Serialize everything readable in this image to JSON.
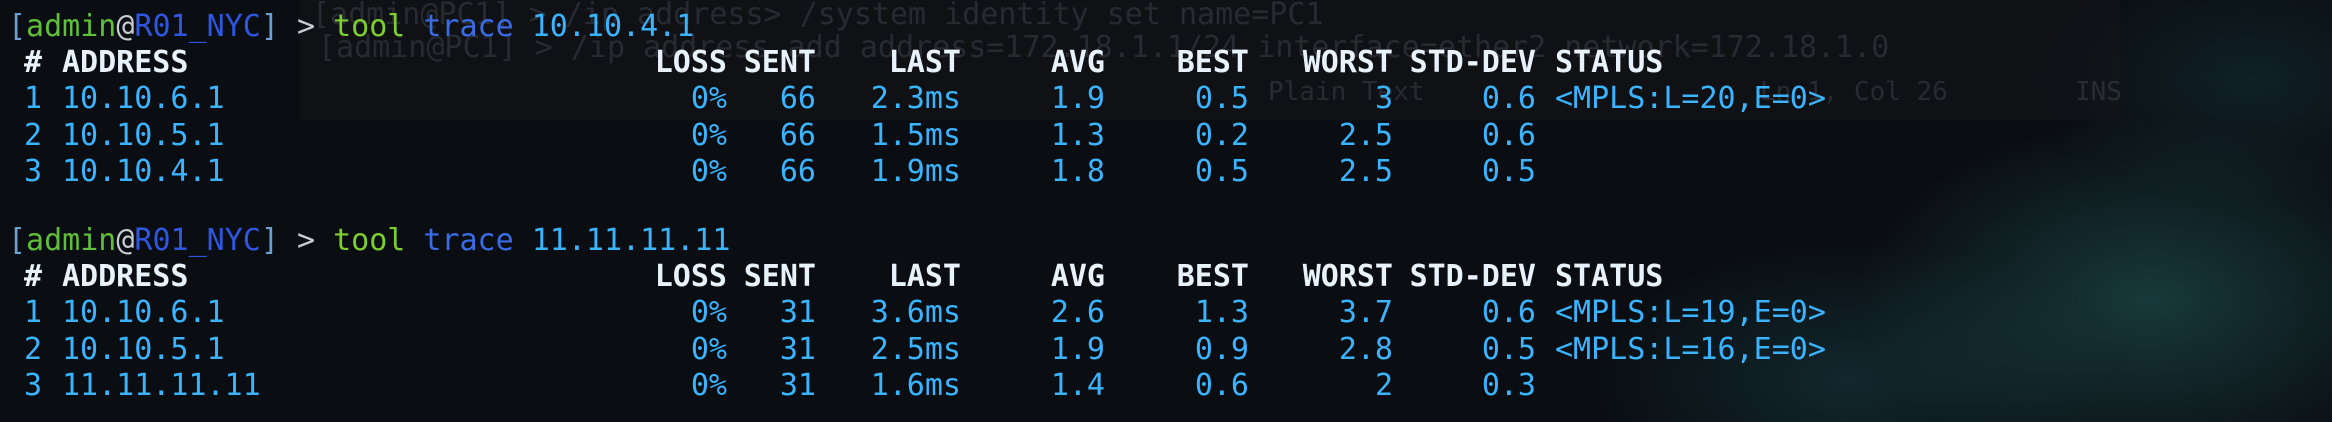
{
  "background_window": {
    "lines": [
      "[admin@PC1] > /ip address> /system identity set name=PC1",
      "[admin@PC1] > /ip address add address=172.18.1.1/24 interface=ether2 network=172.18.1.0"
    ],
    "status_bar": {
      "language": "Plain Text",
      "position": "Ln 1, Col 26",
      "mode": "INS"
    }
  },
  "sessions": [
    {
      "prompt": {
        "open": "[",
        "user": "admin",
        "at": "@",
        "host": "R01_NYC",
        "close": "]",
        "arrow": ">",
        "command": "tool",
        "verb": "trace",
        "target": "10.10.4.1"
      },
      "header": {
        "index": "#",
        "address": "ADDRESS",
        "loss": "LOSS",
        "sent": "SENT",
        "last": "LAST",
        "avg": "AVG",
        "best": "BEST",
        "worst": "WORST",
        "std_dev": "STD-DEV",
        "status": "STATUS"
      },
      "rows": [
        {
          "index": "1",
          "address": "10.10.6.1",
          "loss": "0%",
          "sent": "66",
          "last": "2.3ms",
          "avg": "1.9",
          "best": "0.5",
          "worst": "3",
          "std_dev": "0.6",
          "status": "<MPLS:L=20,E=0>"
        },
        {
          "index": "2",
          "address": "10.10.5.1",
          "loss": "0%",
          "sent": "66",
          "last": "1.5ms",
          "avg": "1.3",
          "best": "0.2",
          "worst": "2.5",
          "std_dev": "0.6"
        },
        {
          "index": "3",
          "address": "10.10.4.1",
          "loss": "0%",
          "sent": "66",
          "last": "1.9ms",
          "avg": "1.8",
          "best": "0.5",
          "worst": "2.5",
          "std_dev": "0.5"
        }
      ]
    },
    {
      "prompt": {
        "open": "[",
        "user": "admin",
        "at": "@",
        "host": "R01_NYC",
        "close": "]",
        "arrow": ">",
        "command": "tool",
        "verb": "trace",
        "target": "11.11.11.11"
      },
      "header": {
        "index": "#",
        "address": "ADDRESS",
        "loss": "LOSS",
        "sent": "SENT",
        "last": "LAST",
        "avg": "AVG",
        "best": "BEST",
        "worst": "WORST",
        "std_dev": "STD-DEV",
        "status": "STATUS"
      },
      "rows": [
        {
          "index": "1",
          "address": "10.10.6.1",
          "loss": "0%",
          "sent": "31",
          "last": "3.6ms",
          "avg": "2.6",
          "best": "1.3",
          "worst": "3.7",
          "std_dev": "0.6",
          "status": "<MPLS:L=19,E=0>"
        },
        {
          "index": "2",
          "address": "10.10.5.1",
          "loss": "0%",
          "sent": "31",
          "last": "2.5ms",
          "avg": "1.9",
          "best": "0.9",
          "worst": "2.8",
          "std_dev": "0.5",
          "status": "<MPLS:L=16,E=0>"
        },
        {
          "index": "3",
          "address": "11.11.11.11",
          "loss": "0%",
          "sent": "31",
          "last": "1.6ms",
          "avg": "1.4",
          "best": "0.6",
          "worst": "2",
          "std_dev": "0.3"
        }
      ]
    }
  ]
}
